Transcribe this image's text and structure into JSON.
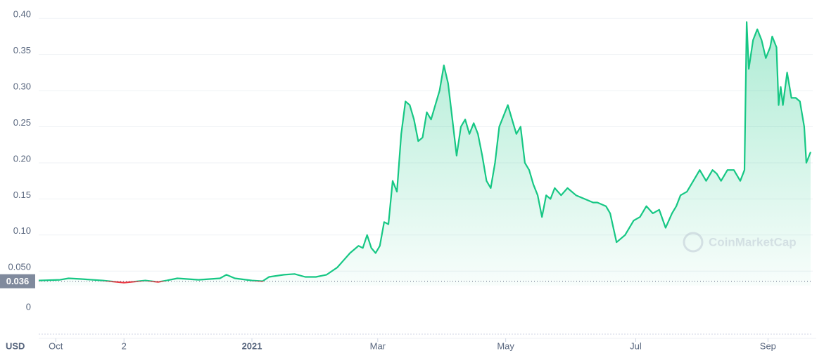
{
  "chart_data": {
    "type": "line",
    "currency": "USD",
    "watermark": "CoinMarketCap",
    "current_price": 0.036,
    "color": "#16c784",
    "below_color": "#ea3943",
    "grid": true,
    "x": [
      0,
      10,
      14,
      20,
      30,
      40,
      50,
      56,
      60,
      65,
      75,
      85,
      88,
      92,
      100,
      105,
      108,
      115,
      120,
      125,
      130,
      135,
      140,
      143,
      146,
      150,
      152,
      154,
      156,
      158,
      160,
      162,
      164,
      166,
      168,
      170,
      172,
      174,
      176,
      178,
      180,
      182,
      184,
      186,
      188,
      190,
      192,
      194,
      196,
      198,
      200,
      202,
      204,
      206,
      208,
      210,
      212,
      214,
      216,
      218,
      220,
      222,
      224,
      226,
      228,
      230,
      232,
      234,
      236,
      238,
      240,
      242,
      245,
      248,
      252,
      256,
      260,
      262,
      266,
      268,
      271,
      273,
      275,
      279,
      282,
      285,
      288,
      291,
      294,
      297,
      299,
      301,
      304,
      307,
      310,
      313,
      316,
      318,
      320,
      323,
      326,
      329,
      331,
      332,
      333,
      335,
      337,
      339,
      341,
      343,
      344,
      346,
      347,
      348,
      349,
      351,
      353,
      355,
      357,
      359,
      360,
      362
    ],
    "values": [
      0.037,
      0.038,
      0.04,
      0.039,
      0.037,
      0.034,
      0.037,
      0.035,
      0.037,
      0.04,
      0.038,
      0.04,
      0.045,
      0.04,
      0.037,
      0.036,
      0.042,
      0.045,
      0.046,
      0.042,
      0.042,
      0.045,
      0.055,
      0.065,
      0.075,
      0.085,
      0.082,
      0.1,
      0.082,
      0.075,
      0.085,
      0.118,
      0.115,
      0.175,
      0.16,
      0.24,
      0.285,
      0.28,
      0.26,
      0.23,
      0.235,
      0.27,
      0.26,
      0.28,
      0.3,
      0.335,
      0.31,
      0.26,
      0.21,
      0.25,
      0.26,
      0.24,
      0.255,
      0.24,
      0.21,
      0.175,
      0.165,
      0.2,
      0.25,
      0.265,
      0.28,
      0.26,
      0.24,
      0.25,
      0.2,
      0.19,
      0.17,
      0.155,
      0.125,
      0.155,
      0.15,
      0.165,
      0.155,
      0.165,
      0.155,
      0.15,
      0.145,
      0.145,
      0.14,
      0.13,
      0.09,
      0.095,
      0.1,
      0.12,
      0.125,
      0.14,
      0.13,
      0.135,
      0.11,
      0.13,
      0.14,
      0.155,
      0.16,
      0.175,
      0.19,
      0.175,
      0.19,
      0.185,
      0.175,
      0.19,
      0.19,
      0.175,
      0.19,
      0.395,
      0.33,
      0.37,
      0.385,
      0.37,
      0.345,
      0.36,
      0.375,
      0.36,
      0.28,
      0.305,
      0.28,
      0.325,
      0.29,
      0.29,
      0.285,
      0.25,
      0.2,
      0.215
    ],
    "xlim": [
      0,
      363
    ],
    "xticks": [
      {
        "value": 8,
        "label": "Oct"
      },
      {
        "value": 40,
        "label": "2"
      },
      {
        "value": 100,
        "label": "2021"
      },
      {
        "value": 159,
        "label": "Mar"
      },
      {
        "value": 219,
        "label": "May"
      },
      {
        "value": 280,
        "label": "Jul"
      },
      {
        "value": 342,
        "label": "Sep"
      }
    ],
    "ylim": [
      0.03,
      0.415
    ],
    "yticks": [
      {
        "value": 0.05,
        "label": "0.050"
      },
      {
        "value": 0.1,
        "label": "0.10"
      },
      0.15,
      {
        "value": 0.2,
        "label": "0.20"
      },
      0.25,
      {
        "value": 0.3,
        "label": "0.30"
      },
      0.35,
      {
        "value": 0.4,
        "label": "0.40"
      }
    ],
    "y2ticks": [
      0
    ]
  }
}
